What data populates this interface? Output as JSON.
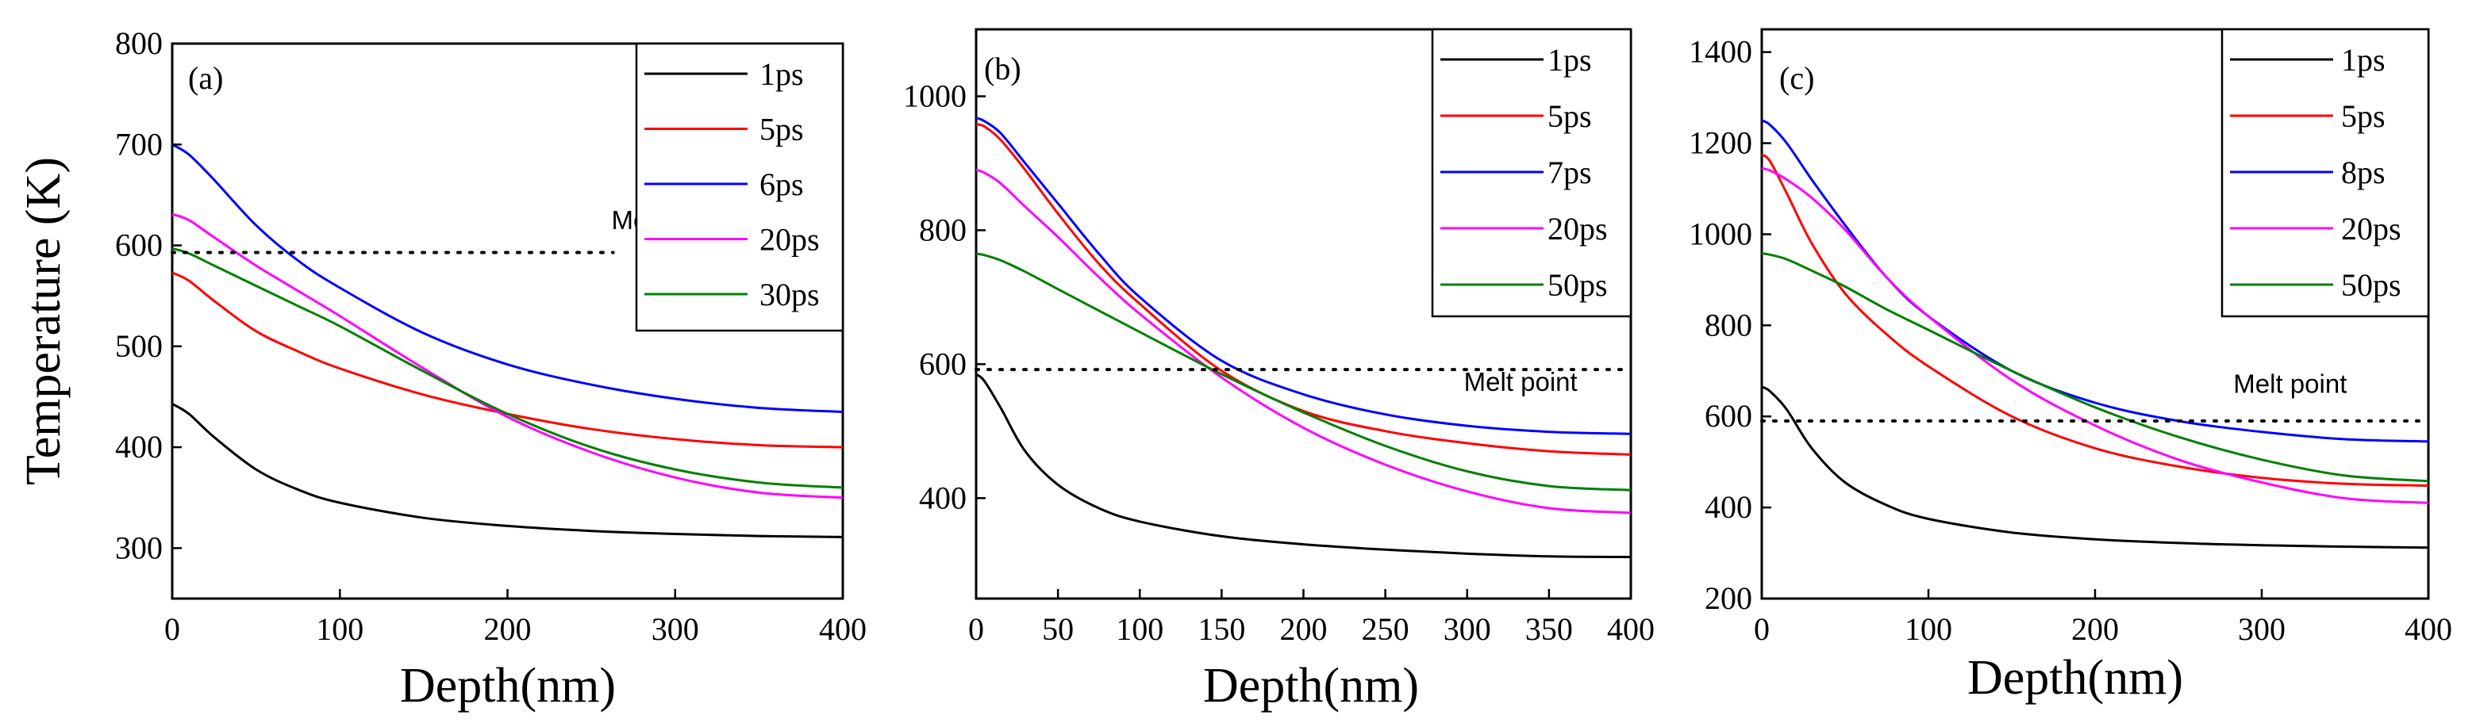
{
  "chart_data": [
    {
      "type": "line",
      "panel_label": "(a)",
      "xlabel": "Depth(nm)",
      "ylabel": "Temperature (K)",
      "xlim": [
        0,
        400
      ],
      "ylim": [
        250,
        800
      ],
      "xticks": [
        0,
        100,
        200,
        300,
        400
      ],
      "yticks": [
        300,
        400,
        500,
        600,
        700,
        800
      ],
      "legend_position": "top-right",
      "melt_label": "Melt point",
      "melt_line": {
        "y": 593,
        "x_start": 0,
        "x_end": 263
      },
      "melt_label_pos": {
        "x": 262,
        "y": 616
      },
      "series": [
        {
          "name": "1ps",
          "color": "#000000",
          "x": [
            0,
            10,
            25,
            50,
            75,
            100,
            150,
            200,
            250,
            300,
            350,
            400
          ],
          "y": [
            443,
            433,
            410,
            378,
            358,
            345,
            330,
            322,
            317,
            314,
            312,
            311
          ]
        },
        {
          "name": "5ps",
          "color": "#ff0000",
          "x": [
            0,
            10,
            25,
            50,
            75,
            100,
            150,
            200,
            250,
            300,
            350,
            400
          ],
          "y": [
            573,
            565,
            545,
            515,
            495,
            478,
            452,
            433,
            418,
            408,
            402,
            400
          ]
        },
        {
          "name": "6ps",
          "color": "#0000ff",
          "x": [
            0,
            10,
            25,
            50,
            75,
            100,
            150,
            200,
            250,
            300,
            350,
            400
          ],
          "y": [
            700,
            690,
            665,
            620,
            585,
            558,
            513,
            482,
            462,
            448,
            439,
            435
          ]
        },
        {
          "name": "20ps",
          "color": "#ff00ff",
          "x": [
            0,
            10,
            25,
            50,
            75,
            100,
            150,
            200,
            250,
            300,
            350,
            400
          ],
          "y": [
            631,
            625,
            608,
            580,
            555,
            530,
            478,
            430,
            395,
            370,
            355,
            350
          ]
        },
        {
          "name": "30ps",
          "color": "#008000",
          "x": [
            0,
            10,
            25,
            50,
            75,
            100,
            150,
            200,
            250,
            300,
            350,
            400
          ],
          "y": [
            597,
            592,
            580,
            560,
            540,
            520,
            475,
            433,
            400,
            378,
            365,
            360
          ]
        }
      ]
    },
    {
      "type": "line",
      "panel_label": "(b)",
      "xlabel": "Depth(nm)",
      "ylabel": "",
      "xlim": [
        0,
        400
      ],
      "ylim": [
        250,
        1100
      ],
      "xticks": [
        0,
        50,
        100,
        150,
        200,
        250,
        300,
        350,
        400
      ],
      "yticks": [
        400,
        600,
        800,
        1000
      ],
      "legend_position": "top-right",
      "melt_label": "Melt point",
      "melt_line": {
        "y": 592,
        "x_start": 0,
        "x_end": 400
      },
      "melt_label_pos": {
        "x": 298,
        "y": 560
      },
      "series": [
        {
          "name": "1ps",
          "color": "#000000",
          "x": [
            0,
            5,
            15,
            30,
            50,
            75,
            100,
            150,
            200,
            250,
            300,
            350,
            400
          ],
          "y": [
            585,
            575,
            535,
            470,
            420,
            385,
            365,
            343,
            331,
            323,
            317,
            313,
            312
          ]
        },
        {
          "name": "5ps",
          "color": "#ff0000",
          "x": [
            0,
            5,
            15,
            30,
            50,
            75,
            100,
            150,
            200,
            250,
            300,
            350,
            400
          ],
          "y": [
            958,
            955,
            935,
            890,
            825,
            750,
            690,
            590,
            530,
            500,
            482,
            470,
            465
          ]
        },
        {
          "name": "7ps",
          "color": "#0000ff",
          "x": [
            0,
            5,
            15,
            30,
            50,
            75,
            100,
            150,
            200,
            250,
            300,
            350,
            400
          ],
          "y": [
            968,
            963,
            945,
            900,
            840,
            765,
            700,
            605,
            555,
            525,
            508,
            499,
            496
          ]
        },
        {
          "name": "20ps",
          "color": "#ff00ff",
          "x": [
            0,
            5,
            15,
            30,
            50,
            75,
            100,
            150,
            200,
            250,
            300,
            350,
            400
          ],
          "y": [
            890,
            886,
            870,
            835,
            790,
            730,
            675,
            580,
            505,
            450,
            410,
            385,
            378
          ]
        },
        {
          "name": "50ps",
          "color": "#008000",
          "x": [
            0,
            5,
            15,
            30,
            50,
            75,
            100,
            150,
            200,
            250,
            300,
            350,
            400
          ],
          "y": [
            765,
            763,
            755,
            738,
            712,
            680,
            648,
            585,
            528,
            478,
            440,
            418,
            412
          ]
        }
      ]
    },
    {
      "type": "line",
      "panel_label": "(c)",
      "xlabel": "Depth(nm)",
      "ylabel": "",
      "xlim": [
        0,
        400
      ],
      "ylim": [
        200,
        1450
      ],
      "xticks": [
        0,
        100,
        200,
        300,
        400
      ],
      "yticks": [
        200,
        400,
        600,
        800,
        1000,
        1200,
        1400
      ],
      "legend_position": "top-right",
      "melt_label": "Melt point",
      "melt_line": {
        "y": 590,
        "x_start": 0,
        "x_end": 400
      },
      "melt_label_pos": {
        "x": 283,
        "y": 652
      },
      "series": [
        {
          "name": "1ps",
          "color": "#000000",
          "x": [
            0,
            5,
            15,
            30,
            50,
            75,
            100,
            150,
            200,
            250,
            300,
            350,
            400
          ],
          "y": [
            665,
            655,
            615,
            530,
            455,
            405,
            375,
            345,
            330,
            322,
            317,
            314,
            312
          ]
        },
        {
          "name": "5ps",
          "color": "#ff0000",
          "x": [
            0,
            5,
            15,
            30,
            50,
            75,
            100,
            150,
            200,
            250,
            300,
            350,
            400
          ],
          "y": [
            1175,
            1160,
            1090,
            980,
            870,
            780,
            710,
            600,
            530,
            490,
            465,
            452,
            448
          ]
        },
        {
          "name": "8ps",
          "color": "#0000ff",
          "x": [
            0,
            5,
            15,
            30,
            50,
            75,
            100,
            150,
            200,
            250,
            300,
            350,
            400
          ],
          "y": [
            1250,
            1240,
            1200,
            1120,
            1020,
            905,
            820,
            700,
            630,
            590,
            566,
            550,
            545
          ]
        },
        {
          "name": "20ps",
          "color": "#ff00ff",
          "x": [
            0,
            5,
            15,
            30,
            50,
            75,
            100,
            150,
            200,
            250,
            300,
            350,
            400
          ],
          "y": [
            1145,
            1140,
            1120,
            1080,
            1010,
            905,
            820,
            680,
            580,
            505,
            455,
            420,
            410
          ]
        },
        {
          "name": "50ps",
          "color": "#008000",
          "x": [
            0,
            5,
            15,
            30,
            50,
            75,
            100,
            150,
            200,
            250,
            300,
            350,
            400
          ],
          "y": [
            958,
            955,
            945,
            920,
            885,
            835,
            790,
            700,
            620,
            555,
            505,
            470,
            458
          ]
        }
      ]
    }
  ]
}
